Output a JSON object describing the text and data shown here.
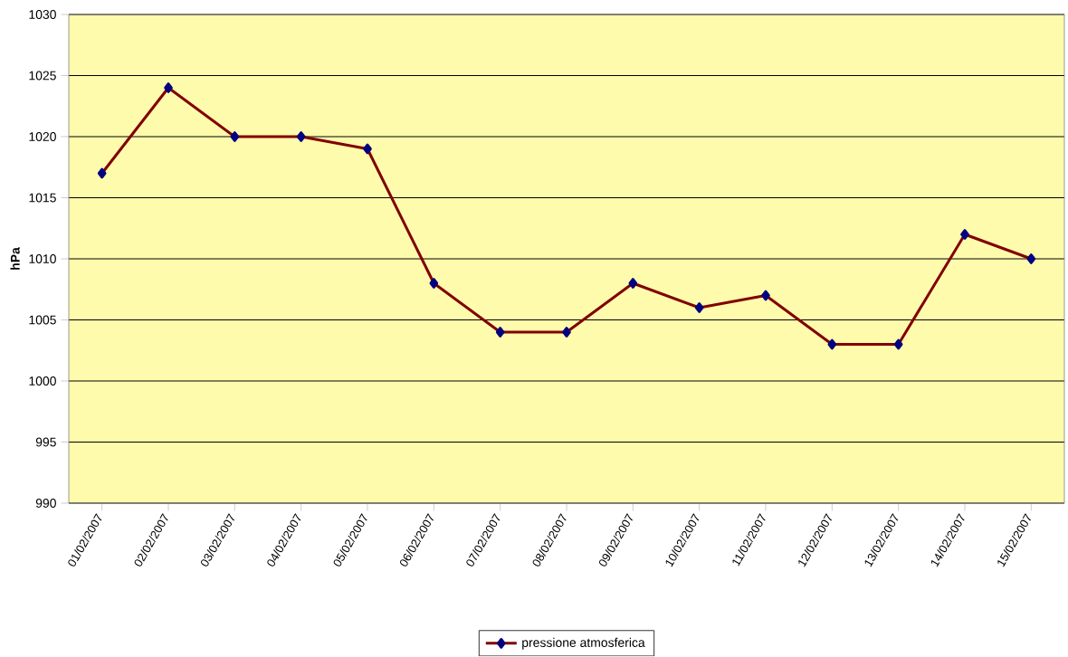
{
  "chart_data": {
    "type": "line",
    "ylabel": "hPa",
    "categories": [
      "01/02/2007",
      "02/02/2007",
      "03/02/2007",
      "04/02/2007",
      "05/02/2007",
      "06/02/2007",
      "07/02/2007",
      "08/02/2007",
      "09/02/2007",
      "10/02/2007",
      "11/02/2007",
      "12/02/2007",
      "13/02/2007",
      "14/02/2007",
      "15/02/2007"
    ],
    "series": [
      {
        "name": "pressione atmosferica",
        "color": "#800000",
        "values": [
          1017,
          1024,
          1020,
          1020,
          1019,
          1008,
          1004,
          1004,
          1008,
          1006,
          1007,
          1003,
          1003,
          1012,
          1010
        ]
      }
    ],
    "ylim": [
      990,
      1030
    ],
    "yticks": [
      990,
      995,
      1000,
      1005,
      1010,
      1015,
      1020,
      1025,
      1030
    ],
    "grid": "y",
    "legend": "bottom",
    "marker": "diamond",
    "line_style": "solid"
  }
}
